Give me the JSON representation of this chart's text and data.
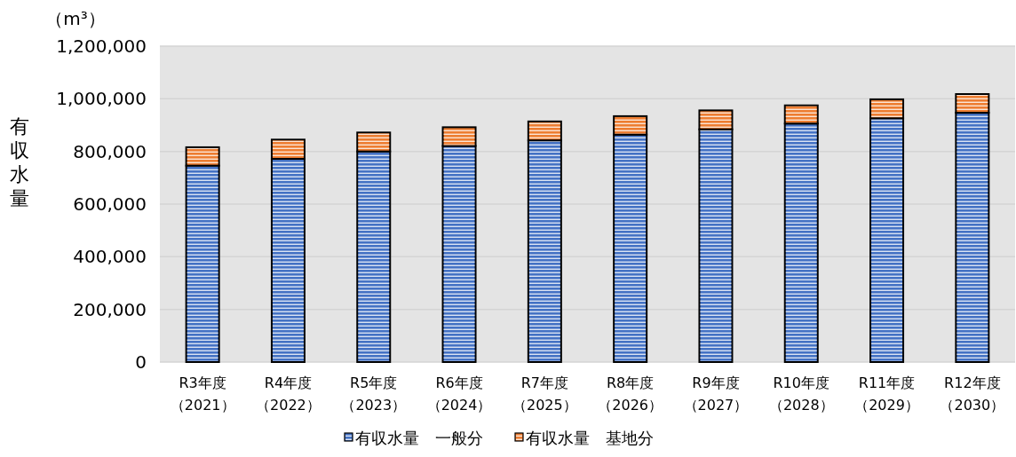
{
  "chart_data": {
    "type": "bar",
    "stacked": true,
    "ylabel": "有収水量",
    "annotations": [
      "（m³）"
    ],
    "categories": [
      "R3年度（2021）",
      "R4年度（2022）",
      "R5年度（2023）",
      "R6年度（2024）",
      "R7年度（2025）",
      "R8年度（2026）",
      "R9年度（2027）",
      "R10年度（2028）",
      "R11年度（2029）",
      "R12年度（2030）"
    ],
    "series": [
      {
        "name": "有収水量　一般分",
        "color": "#4472c4",
        "values": [
          746000,
          772000,
          800000,
          821000,
          842000,
          864000,
          884000,
          906000,
          926000,
          947000
        ]
      },
      {
        "name": "有収水量　基地分",
        "color": "#ed7d31",
        "values": [
          70000,
          73000,
          72000,
          71000,
          72000,
          70000,
          72000,
          69000,
          72000,
          71000
        ]
      }
    ],
    "ylim": [
      0,
      1200000
    ],
    "yticks": [
      {
        "value": 0,
        "label": "0"
      },
      {
        "value": 200000,
        "label": "200,000"
      },
      {
        "value": 400000,
        "label": "400,000"
      },
      {
        "value": 600000,
        "label": "600,000"
      },
      {
        "value": 800000,
        "label": "800,000"
      },
      {
        "value": 1000000,
        "label": "1,000,000"
      },
      {
        "value": 1200000,
        "label": "1,200,000"
      }
    ],
    "grid": "y",
    "legend": "bottom"
  }
}
